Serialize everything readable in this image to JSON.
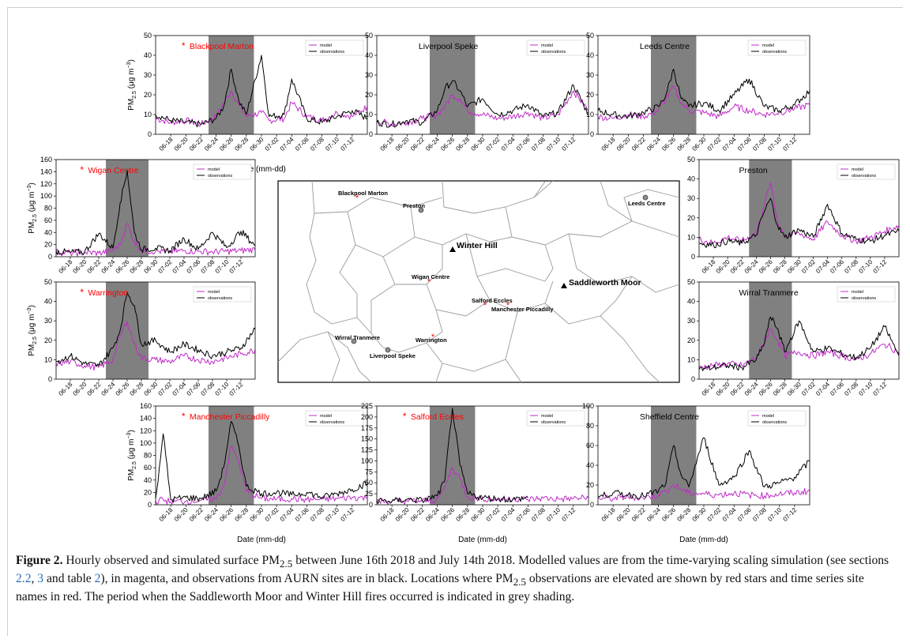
{
  "figure": {
    "x_dates": [
      "06-18",
      "06-20",
      "06-22",
      "06-24",
      "06-26",
      "06-28",
      "06-30",
      "07-02",
      "07-04",
      "07-06",
      "07-08",
      "07-10",
      "07-12"
    ],
    "x_axis_label": "Date (mm-dd)",
    "y_axis_label": "PM",
    "y_axis_sub": "2.5",
    "y_axis_unit": "(μg m",
    "y_axis_unit_sup": "−3",
    "y_axis_unit_close": ")",
    "legend_model": "model",
    "legend_observations": "observations",
    "colors": {
      "model": "#c02cc8",
      "observations": "#000000",
      "shading": "#808080",
      "elevated": "#ff0000"
    }
  },
  "map": {
    "labels": {
      "blackpool": "Blackpool Marton",
      "preston": "Preston",
      "leeds": "Leeds Centre",
      "winter_hill": "Winter Hill",
      "wigan": "Wigan Centre",
      "saddleworth": "Saddleworth Moor",
      "salford": "Salford Eccles",
      "manchester": "Manchester Piccadilly",
      "wirral": "Wirral Tranmere",
      "warrington": "Warrington",
      "liverpool": "Liverpool Speke"
    }
  },
  "caption": {
    "label": "Figure 2.",
    "p1": " Hourly observed and simulated surface PM",
    "sub1": "2.5",
    "p2": " between June 16th 2018 and July 14th 2018. Modelled values are from the time-varying scaling simulation (see sections ",
    "ref1": "2.2",
    "sep1": ", ",
    "ref2": "3",
    "p3": " and table ",
    "ref3": "2",
    "p4": "), in magenta, and observations from AURN sites are in black. Locations where PM",
    "sub2": "2.5",
    "p5": " observations are elevated are shown by red stars and time series site names in red. The period when the Saddleworth Moor and Winter Hill fires occurred is indicated in grey shading."
  },
  "chart_data": [
    {
      "type": "line",
      "title": "Blackpool Marton",
      "elevated": true,
      "ylim": [
        0,
        50
      ],
      "yticks": [
        0,
        10,
        20,
        30,
        40,
        50
      ],
      "fire_period": [
        "06-23",
        "06-29"
      ],
      "x": [
        "06-16",
        "06-18",
        "06-20",
        "06-22",
        "06-24",
        "06-25",
        "06-26",
        "06-27",
        "06-28",
        "06-30",
        "07-01",
        "07-03",
        "07-04",
        "07-06",
        "07-08",
        "07-10",
        "07-12",
        "07-14"
      ],
      "series": [
        {
          "name": "model",
          "values": [
            8,
            6,
            7,
            5,
            9,
            16,
            22,
            15,
            9,
            11,
            7,
            8,
            16,
            9,
            7,
            11,
            9,
            14
          ]
        },
        {
          "name": "observations",
          "values": [
            10,
            7,
            6,
            5,
            8,
            14,
            33,
            17,
            10,
            40,
            9,
            10,
            28,
            8,
            6,
            9,
            12,
            8
          ]
        }
      ]
    },
    {
      "type": "line",
      "title": "Liverpool Speke",
      "elevated": false,
      "ylim": [
        0,
        50
      ],
      "yticks": [
        0,
        10,
        20,
        30,
        40,
        50
      ],
      "fire_period": [
        "06-23",
        "06-29"
      ],
      "x": [
        "06-16",
        "06-18",
        "06-20",
        "06-22",
        "06-24",
        "06-25",
        "06-26",
        "06-27",
        "06-28",
        "06-30",
        "07-02",
        "07-04",
        "07-06",
        "07-08",
        "07-10",
        "07-12",
        "07-14"
      ],
      "series": [
        {
          "name": "model",
          "values": [
            7,
            5,
            6,
            8,
            10,
            14,
            20,
            18,
            12,
            10,
            8,
            9,
            11,
            8,
            10,
            22,
            12
          ]
        },
        {
          "name": "observations",
          "values": [
            6,
            5,
            7,
            6,
            12,
            23,
            27,
            22,
            14,
            18,
            10,
            12,
            15,
            9,
            11,
            25,
            10
          ]
        }
      ]
    },
    {
      "type": "line",
      "title": "Leeds Centre",
      "elevated": false,
      "ylim": [
        0,
        50
      ],
      "yticks": [
        0,
        10,
        20,
        30,
        40,
        50
      ],
      "fire_period": [
        "06-23",
        "06-29"
      ],
      "x": [
        "06-16",
        "06-18",
        "06-20",
        "06-22",
        "06-24",
        "06-25",
        "06-26",
        "06-27",
        "06-28",
        "06-30",
        "07-02",
        "07-04",
        "07-06",
        "07-08",
        "07-10",
        "07-12",
        "07-14"
      ],
      "series": [
        {
          "name": "model",
          "values": [
            9,
            8,
            10,
            9,
            12,
            18,
            24,
            16,
            12,
            11,
            9,
            14,
            12,
            10,
            11,
            13,
            15
          ]
        },
        {
          "name": "observations",
          "values": [
            12,
            10,
            9,
            11,
            14,
            20,
            33,
            18,
            14,
            16,
            12,
            20,
            28,
            14,
            12,
            15,
            22
          ]
        }
      ]
    },
    {
      "type": "line",
      "title": "Wigan Centre",
      "elevated": true,
      "ylim": [
        0,
        160
      ],
      "yticks": [
        0,
        20,
        40,
        60,
        80,
        100,
        120,
        140,
        160
      ],
      "fire_period": [
        "06-23",
        "06-29"
      ],
      "x": [
        "06-16",
        "06-18",
        "06-20",
        "06-22",
        "06-24",
        "06-25",
        "06-26",
        "06-27",
        "06-28",
        "06-30",
        "07-02",
        "07-04",
        "07-06",
        "07-08",
        "07-10",
        "07-12",
        "07-14"
      ],
      "series": [
        {
          "name": "model",
          "values": [
            8,
            6,
            7,
            6,
            10,
            20,
            55,
            25,
            10,
            9,
            8,
            10,
            9,
            8,
            9,
            10,
            12
          ]
        },
        {
          "name": "observations",
          "values": [
            9,
            7,
            8,
            38,
            14,
            88,
            142,
            40,
            12,
            14,
            10,
            30,
            12,
            40,
            15,
            42,
            18
          ]
        }
      ]
    },
    {
      "type": "line",
      "title": "Preston",
      "elevated": false,
      "ylim": [
        0,
        50
      ],
      "yticks": [
        0,
        10,
        20,
        30,
        40,
        50
      ],
      "fire_period": [
        "06-23",
        "06-29"
      ],
      "x": [
        "06-16",
        "06-18",
        "06-20",
        "06-22",
        "06-24",
        "06-25",
        "06-26",
        "06-27",
        "06-28",
        "06-30",
        "07-02",
        "07-04",
        "07-06",
        "07-08",
        "07-10",
        "07-12",
        "07-14"
      ],
      "series": [
        {
          "name": "model",
          "values": [
            9,
            7,
            10,
            8,
            12,
            25,
            38,
            18,
            11,
            12,
            9,
            18,
            11,
            8,
            10,
            13,
            16
          ]
        },
        {
          "name": "observations",
          "values": [
            7,
            6,
            8,
            7,
            11,
            22,
            30,
            16,
            10,
            14,
            10,
            27,
            12,
            9,
            8,
            11,
            13
          ]
        }
      ]
    },
    {
      "type": "line",
      "title": "Warrington",
      "elevated": true,
      "ylim": [
        0,
        50
      ],
      "yticks": [
        0,
        10,
        20,
        30,
        40,
        50
      ],
      "fire_period": [
        "06-23",
        "06-29"
      ],
      "x": [
        "06-16",
        "06-18",
        "06-20",
        "06-22",
        "06-24",
        "06-25",
        "06-26",
        "06-27",
        "06-28",
        "06-30",
        "07-02",
        "07-04",
        "07-06",
        "07-08",
        "07-10",
        "07-12",
        "07-14"
      ],
      "series": [
        {
          "name": "model",
          "values": [
            8,
            9,
            7,
            6,
            10,
            22,
            30,
            18,
            11,
            10,
            9,
            12,
            10,
            9,
            11,
            13,
            15
          ]
        },
        {
          "name": "observations",
          "values": [
            9,
            12,
            8,
            7,
            16,
            25,
            45,
            38,
            18,
            20,
            14,
            18,
            15,
            12,
            14,
            16,
            26
          ]
        }
      ]
    },
    {
      "type": "line",
      "title": "Wirral Tranmere",
      "elevated": false,
      "ylim": [
        0,
        50
      ],
      "yticks": [
        0,
        10,
        20,
        30,
        40,
        50
      ],
      "fire_period": [
        "06-23",
        "06-29"
      ],
      "x": [
        "06-16",
        "06-18",
        "06-20",
        "06-22",
        "06-24",
        "06-25",
        "06-26",
        "06-27",
        "06-28",
        "06-30",
        "07-02",
        "07-04",
        "07-06",
        "07-08",
        "07-10",
        "07-12",
        "07-14"
      ],
      "series": [
        {
          "name": "model",
          "values": [
            6,
            7,
            8,
            7,
            11,
            18,
            26,
            20,
            12,
            14,
            12,
            14,
            12,
            10,
            13,
            18,
            14
          ]
        },
        {
          "name": "observations",
          "values": [
            5,
            6,
            7,
            6,
            10,
            17,
            32,
            26,
            14,
            30,
            14,
            16,
            13,
            11,
            16,
            27,
            12
          ]
        }
      ]
    },
    {
      "type": "line",
      "title": "Manchester Piccadilly",
      "elevated": true,
      "ylim": [
        0,
        160
      ],
      "yticks": [
        0,
        20,
        40,
        60,
        80,
        100,
        120,
        140,
        160
      ],
      "fire_period": [
        "06-23",
        "06-29"
      ],
      "x": [
        "06-16",
        "06-17",
        "06-18",
        "06-20",
        "06-22",
        "06-24",
        "06-25",
        "06-26",
        "06-27",
        "06-28",
        "06-30",
        "07-02",
        "07-04",
        "07-06",
        "07-08",
        "07-10",
        "07-12",
        "07-14"
      ],
      "series": [
        {
          "name": "model",
          "values": [
            6,
            8,
            5,
            6,
            7,
            10,
            30,
            95,
            70,
            22,
            10,
            9,
            10,
            8,
            9,
            10,
            12,
            11
          ]
        },
        {
          "name": "observations",
          "values": [
            10,
            115,
            8,
            12,
            10,
            22,
            60,
            135,
            95,
            30,
            18,
            20,
            16,
            20,
            12,
            18,
            25,
            35
          ]
        }
      ]
    },
    {
      "type": "line",
      "title": "Salford Eccles",
      "elevated": true,
      "ylim": [
        0,
        225
      ],
      "yticks": [
        0,
        25,
        50,
        75,
        100,
        125,
        150,
        175,
        200,
        225
      ],
      "fire_period": [
        "06-23",
        "06-29"
      ],
      "x": [
        "06-16",
        "06-18",
        "06-20",
        "06-22",
        "06-24",
        "06-25",
        "06-26",
        "06-27",
        "06-28",
        "06-30",
        "07-02",
        "07-04",
        "07-06",
        "07-08",
        "07-10",
        "07-12",
        "07-14"
      ],
      "series": [
        {
          "name": "model",
          "values": [
            8,
            7,
            9,
            8,
            12,
            40,
            85,
            60,
            18,
            14,
            12,
            14,
            12,
            15,
            13,
            14,
            16
          ]
        },
        {
          "name": "observations",
          "values": [
            10,
            8,
            12,
            10,
            20,
            55,
            220,
            90,
            25,
            16,
            14,
            12,
            16,
            null,
            null,
            null,
            null
          ]
        }
      ]
    },
    {
      "type": "line",
      "title": "Sheffield Centre",
      "elevated": false,
      "ylim": [
        0,
        100
      ],
      "yticks": [
        0,
        20,
        40,
        60,
        80,
        100
      ],
      "fire_period": [
        "06-23",
        "06-29"
      ],
      "x": [
        "06-16",
        "06-18",
        "06-20",
        "06-22",
        "06-24",
        "06-25",
        "06-26",
        "06-27",
        "06-28",
        "06-30",
        "07-02",
        "07-04",
        "07-06",
        "07-08",
        "07-10",
        "07-12",
        "07-14"
      ],
      "series": [
        {
          "name": "model",
          "values": [
            7,
            6,
            8,
            7,
            10,
            14,
            20,
            16,
            12,
            11,
            10,
            12,
            10,
            9,
            11,
            12,
            14
          ]
        },
        {
          "name": "observations",
          "values": [
            8,
            12,
            10,
            9,
            14,
            22,
            60,
            30,
            18,
            68,
            20,
            28,
            55,
            18,
            22,
            28,
            44
          ]
        }
      ]
    }
  ]
}
